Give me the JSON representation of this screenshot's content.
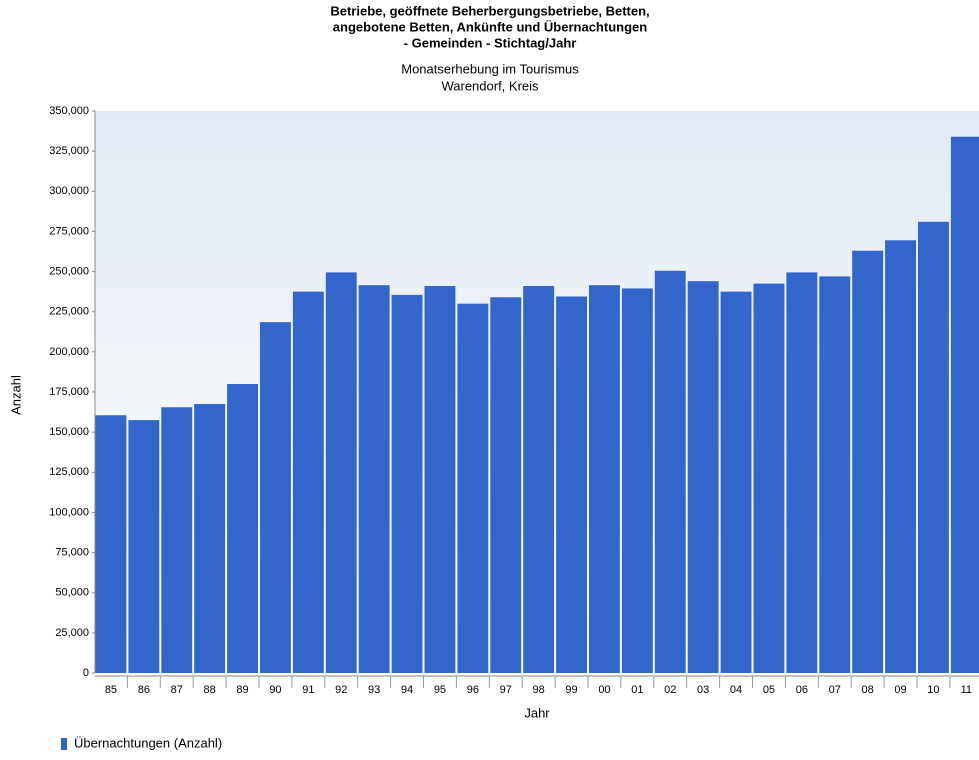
{
  "chart_data": {
    "type": "bar",
    "title": [
      "Betriebe, geöffnete Beherbergungsbetriebe, Betten,",
      "angebotene Betten, Ankünfte und Übernachtungen",
      "- Gemeinden - Stichtag/Jahr"
    ],
    "subtitle": [
      "Monatserhebung im Tourismus",
      "Warendorf, Kreis"
    ],
    "x_label": "Jahr",
    "y_label": "Anzahl",
    "categories": [
      "85",
      "86",
      "87",
      "88",
      "89",
      "90",
      "91",
      "92",
      "93",
      "94",
      "95",
      "96",
      "97",
      "98",
      "99",
      "00",
      "01",
      "02",
      "03",
      "04",
      "05",
      "06",
      "07",
      "08",
      "09",
      "10",
      "11"
    ],
    "series": [
      {
        "name": "Übernachtungen (Anzahl)",
        "color": "#3366cc",
        "values": [
          160500,
          157500,
          165500,
          167500,
          180000,
          218500,
          237500,
          249500,
          241500,
          235500,
          241000,
          230000,
          234000,
          241000,
          234500,
          241500,
          239500,
          250500,
          244000,
          237500,
          242500,
          249500,
          247000,
          263000,
          269500,
          281000,
          334000
        ]
      }
    ],
    "ylim": [
      0,
      350000
    ],
    "yticks": [
      0,
      {
        "value": 25000,
        "label": "25,000"
      },
      {
        "value": 50000,
        "label": "50,000"
      },
      {
        "value": 75000,
        "label": "75,000"
      },
      {
        "value": 100000,
        "label": "100,000"
      },
      {
        "value": 125000,
        "label": "125,000"
      },
      {
        "value": 150000,
        "label": "150,000"
      },
      {
        "value": 175000,
        "label": "175,000"
      },
      {
        "value": 200000,
        "label": "200,000"
      },
      {
        "value": 225000,
        "label": "225,000"
      },
      {
        "value": 250000,
        "label": "250,000"
      },
      {
        "value": 275000,
        "label": "275,000"
      },
      {
        "value": 300000,
        "label": "300,000"
      },
      {
        "value": 325000,
        "label": "325,000"
      },
      {
        "value": 350000,
        "label": "350,000"
      }
    ],
    "grid": false,
    "legend": "bottom-left"
  }
}
